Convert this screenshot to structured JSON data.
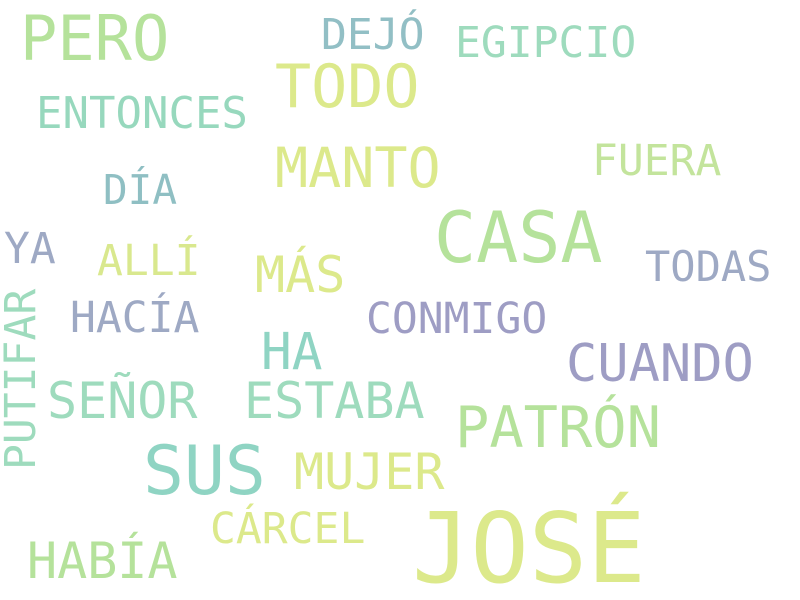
{
  "cloud": {
    "words": {
      "pero": {
        "text": "PERO",
        "color": "#b5e29b"
      },
      "dejo": {
        "text": "DEJÓ",
        "color": "#92bfc5"
      },
      "egipcio": {
        "text": "EGIPCIO",
        "color": "#9edbbd"
      },
      "todo": {
        "text": "TODO",
        "color": "#dce98b"
      },
      "entonces": {
        "text": "ENTONCES",
        "color": "#97d8bd"
      },
      "manto": {
        "text": "MANTO",
        "color": "#dce98b"
      },
      "fuera": {
        "text": "FUERA",
        "color": "#c3e49c"
      },
      "dia": {
        "text": "DÍA",
        "color": "#8fbfc3"
      },
      "casa": {
        "text": "CASA",
        "color": "#b5e29b"
      },
      "ya": {
        "text": "YA",
        "color": "#9ea9c4"
      },
      "alli": {
        "text": "ALLÍ",
        "color": "#d9e88e"
      },
      "mas": {
        "text": "MÁS",
        "color": "#dce98b"
      },
      "todas": {
        "text": "TODAS",
        "color": "#9ea9c4"
      },
      "hacia": {
        "text": "HACÍA",
        "color": "#9ea9c4"
      },
      "conmigo": {
        "text": "CONMIGO",
        "color": "#9e9dc4"
      },
      "putifar": {
        "text": "PUTIFAR",
        "color": "#9edbbd"
      },
      "ha": {
        "text": "HA",
        "color": "#8fd4c3"
      },
      "cuando": {
        "text": "CUANDO",
        "color": "#9e9dc4"
      },
      "senor": {
        "text": "SEÑOR",
        "color": "#9edbbd"
      },
      "estaba": {
        "text": "ESTABA",
        "color": "#9edbbd"
      },
      "patron": {
        "text": "PATRÓN",
        "color": "#b5e29b"
      },
      "sus": {
        "text": "SUS",
        "color": "#8fd4c3"
      },
      "mujer": {
        "text": "MUJER",
        "color": "#dce98b"
      },
      "carcel": {
        "text": "CÁRCEL",
        "color": "#dce98b"
      },
      "jose": {
        "text": "JOSÉ",
        "color": "#dce98b"
      },
      "habia": {
        "text": "HABÍA",
        "color": "#b5e29b"
      }
    }
  }
}
